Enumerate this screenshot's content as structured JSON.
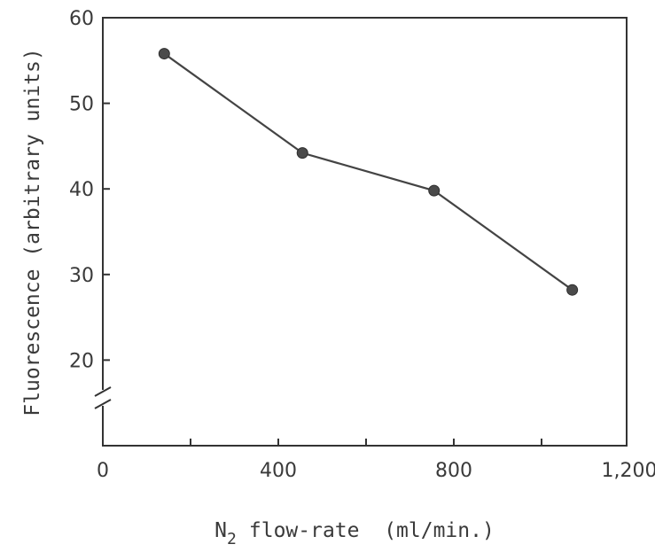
{
  "chart_data": {
    "type": "line",
    "x": [
      140,
      455,
      755,
      1070
    ],
    "series": [
      {
        "values": [
          55.8,
          44.2,
          39.8,
          28.2
        ]
      }
    ],
    "xlim": [
      0,
      1200
    ],
    "ylim": [
      10,
      60
    ],
    "x_ticks": [
      0,
      400,
      800,
      1200
    ],
    "x_tick_labels": [
      "0",
      "400",
      "800",
      "1,200"
    ],
    "y_ticks": [
      20,
      30,
      40,
      50,
      60
    ],
    "y_tick_labels": [
      "20",
      "30",
      "40",
      "50",
      "60"
    ],
    "xlabel_main": "N",
    "xlabel_sub": "2",
    "xlabel_rest": "flow-rate  (ml/min.)",
    "ylabel": "Fluorescence (arbitrary units)",
    "axis_break": "y",
    "grid": false,
    "colors": {
      "line": "#444444",
      "marker": "#4a4a4a",
      "axis": "#333333"
    }
  }
}
